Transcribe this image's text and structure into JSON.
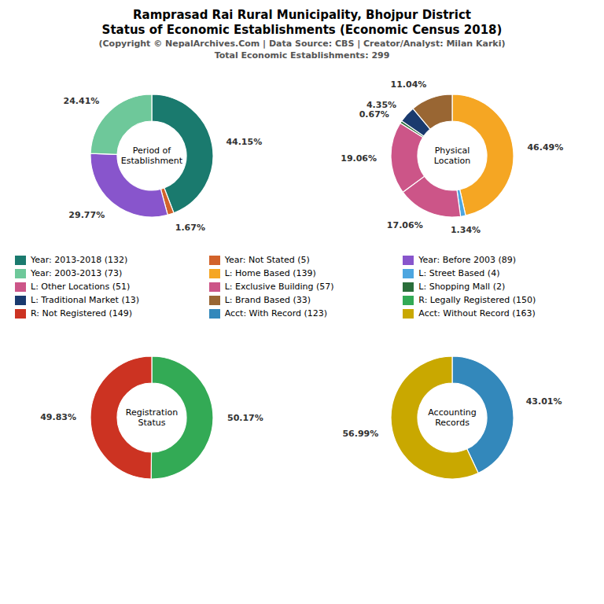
{
  "title": [
    "Ramprasad Rai Rural Municipality, Bhojpur District",
    "Status of Economic Establishments (Economic Census 2018)"
  ],
  "subtitle": [
    "(Copyright © NepalArchives.Com | Data Source: CBS | Creator/Analyst: Milan Karki)",
    "Total Economic Establishments: 299"
  ],
  "chart_data": [
    {
      "type": "pie",
      "title": "Period of\nEstablishment",
      "categories": [
        "Year: 2013-2018 (132)",
        "Year: Not Stated (5)",
        "Year: Before 2003 (89)",
        "Year: 2003-2013 (73)"
      ],
      "values": [
        44.15,
        1.67,
        29.77,
        24.41
      ],
      "value_labels": [
        "44.15%",
        "1.67%",
        "29.77%",
        "24.41%"
      ],
      "colors": [
        "#1a7a6e",
        "#d2622a",
        "#8855cc",
        "#6ec89a"
      ],
      "data_labels": true
    },
    {
      "type": "pie",
      "title": "Physical\nLocation",
      "categories": [
        "L: Home Based (139)",
        "L: Street Based (4)",
        "L: Other Locations (51)",
        "L: Exclusive Building (57)",
        "L: Shopping Mall (2)",
        "L: Traditional Market (13)",
        "L: Brand Based (33)"
      ],
      "values": [
        46.49,
        1.34,
        17.06,
        19.06,
        0.67,
        4.35,
        11.04
      ],
      "value_labels": [
        "46.49%",
        "1.34%",
        "17.06%",
        "19.06%",
        "0.67%",
        "4.35%",
        "11.04%"
      ],
      "colors": [
        "#f5a623",
        "#4da6e0",
        "#cc5588",
        "#cc5588",
        "#2a6e3a",
        "#1a3a6e",
        "#996633"
      ],
      "data_labels": true
    },
    {
      "type": "pie",
      "title": "Registration\nStatus",
      "categories": [
        "R: Legally Registered (150)",
        "R: Not Registered (149)"
      ],
      "values": [
        50.17,
        49.83
      ],
      "value_labels": [
        "50.17%",
        "49.83%"
      ],
      "colors": [
        "#33aa55",
        "#cc3322"
      ],
      "data_labels": true
    },
    {
      "type": "pie",
      "title": "Accounting\nRecords",
      "categories": [
        "Acct: With Record (123)",
        "Acct: Without Record (163)"
      ],
      "values": [
        43.01,
        56.99
      ],
      "value_labels": [
        "43.01%",
        "56.99%"
      ],
      "colors": [
        "#3388bb",
        "#c9a800"
      ],
      "data_labels": true
    }
  ]
}
